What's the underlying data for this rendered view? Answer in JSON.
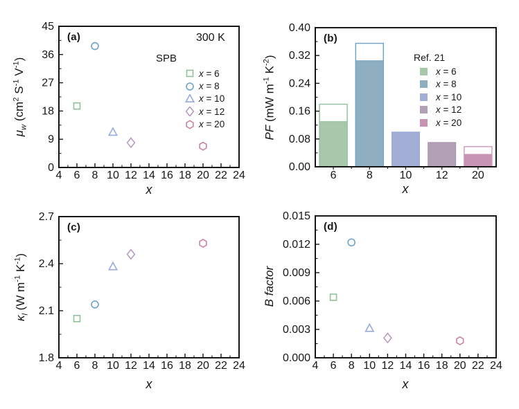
{
  "figure_title": "",
  "temperature_annotation": "300 K",
  "chart_data": [
    {
      "panel": "a",
      "label": "(a)",
      "type": "scatter",
      "annotation": "300 K",
      "xlabel": "*x*",
      "ylabel": "*μ_w_* (cm^2^ S^-1^ V^-1^)",
      "xlim": [
        4,
        24
      ],
      "ylim": [
        0,
        45
      ],
      "x_ticks": [
        4,
        6,
        8,
        10,
        12,
        14,
        16,
        18,
        20,
        22,
        24
      ],
      "x_tick_labels": [
        "4",
        "6",
        "8",
        "10",
        "12",
        "14",
        "16",
        "18",
        "20",
        "22",
        "24"
      ],
      "y_ticks": [
        0,
        9,
        18,
        27,
        36,
        45
      ],
      "y_tick_labels": [
        "0",
        "9",
        "18",
        "27",
        "36",
        "45"
      ],
      "grid": false,
      "legend": {
        "title": "SPB",
        "position": "upper right",
        "items": [
          {
            "label": "*x* = 6",
            "marker": "square",
            "color": "#90bf9b"
          },
          {
            "label": "*x* = 8",
            "marker": "circle",
            "color": "#6fa3c8"
          },
          {
            "label": "*x* = 10",
            "marker": "triangle",
            "color": "#97abda"
          },
          {
            "label": "*x* = 12",
            "marker": "diamond",
            "color": "#b79cc2"
          },
          {
            "label": "*x* = 20",
            "marker": "hexagon",
            "color": "#c684a4"
          }
        ]
      },
      "points": [
        {
          "x": 6,
          "y": 19.6,
          "marker": "square",
          "color": "#90bf9b"
        },
        {
          "x": 8,
          "y": 38.7,
          "marker": "circle",
          "color": "#6fa3c8"
        },
        {
          "x": 10,
          "y": 11.2,
          "marker": "triangle",
          "color": "#97abda"
        },
        {
          "x": 12,
          "y": 7.9,
          "marker": "diamond",
          "color": "#b79cc2"
        },
        {
          "x": 20,
          "y": 6.8,
          "marker": "hexagon",
          "color": "#c684a4"
        }
      ]
    },
    {
      "panel": "b",
      "label": "(b)",
      "type": "bar",
      "xlabel": "*x*",
      "ylabel": "*PF* (mW m^-1^ K^-2^)",
      "categories": [
        "6",
        "8",
        "10",
        "12",
        "20"
      ],
      "ylim": [
        0,
        0.4
      ],
      "y_ticks": [
        0.0,
        0.08,
        0.16,
        0.24,
        0.32,
        0.4
      ],
      "y_tick_labels": [
        "0.00",
        "0.08",
        "0.16",
        "0.24",
        "0.32",
        "0.40"
      ],
      "grid": false,
      "series": [
        {
          "name": "filled",
          "values": [
            0.13,
            0.305,
            0.1,
            0.07,
            0.036
          ]
        },
        {
          "name": "open-outline",
          "values": [
            0.18,
            0.355,
            null,
            null,
            0.058
          ]
        }
      ],
      "bar_colors": [
        "#a9c8ab",
        "#8fafc0",
        "#a2aed6",
        "#b1a0b6",
        "#c794b4"
      ],
      "bar_outline_colors": [
        "#90bf9b",
        "#6fa3c8",
        "#97abda",
        "#a793ad",
        "#cf9ab8"
      ],
      "legend": {
        "title": "Ref. 21",
        "position": "upper right",
        "items": [
          {
            "label": "*x* = 6",
            "color": "#a9c8ab"
          },
          {
            "label": "*x* = 8",
            "color": "#8fafc0"
          },
          {
            "label": "*x* = 10",
            "color": "#a2aed6"
          },
          {
            "label": "*x* = 12",
            "color": "#b1a0b6"
          },
          {
            "label": "*x* = 20",
            "color": "#c794b4"
          }
        ]
      }
    },
    {
      "panel": "c",
      "label": "(c)",
      "type": "scatter",
      "xlabel": "*x*",
      "ylabel": "*κ_l_* (W m^-1^ K^-1^)",
      "xlim": [
        4,
        24
      ],
      "ylim": [
        1.8,
        2.7
      ],
      "x_ticks": [
        4,
        6,
        8,
        10,
        12,
        14,
        16,
        18,
        20,
        22,
        24
      ],
      "x_tick_labels": [
        "4",
        "6",
        "8",
        "10",
        "12",
        "14",
        "16",
        "18",
        "20",
        "22",
        "24"
      ],
      "y_ticks": [
        1.8,
        2.1,
        2.4,
        2.7
      ],
      "y_tick_labels": [
        "1.8",
        "2.1",
        "2.4",
        "2.7"
      ],
      "grid": false,
      "points": [
        {
          "x": 6,
          "y": 2.05,
          "marker": "square",
          "color": "#90bf9b"
        },
        {
          "x": 8,
          "y": 2.14,
          "marker": "circle",
          "color": "#6fa3c8"
        },
        {
          "x": 10,
          "y": 2.38,
          "marker": "triangle",
          "color": "#97abda"
        },
        {
          "x": 12,
          "y": 2.46,
          "marker": "diamond",
          "color": "#b79cc2"
        },
        {
          "x": 20,
          "y": 2.53,
          "marker": "hexagon",
          "color": "#c684a4"
        }
      ]
    },
    {
      "panel": "d",
      "label": "(d)",
      "type": "scatter",
      "xlabel": "*x*",
      "ylabel": "*B factor*",
      "xlim": [
        4,
        24
      ],
      "ylim": [
        0,
        0.015
      ],
      "x_ticks": [
        4,
        6,
        8,
        10,
        12,
        14,
        16,
        18,
        20,
        22,
        24
      ],
      "x_tick_labels": [
        "4",
        "6",
        "8",
        "10",
        "12",
        "14",
        "16",
        "18",
        "20",
        "22",
        "24"
      ],
      "y_ticks": [
        0.0,
        0.003,
        0.006,
        0.009,
        0.012,
        0.015
      ],
      "y_tick_labels": [
        "0.000",
        "0.003",
        "0.006",
        "0.009",
        "0.012",
        "0.015"
      ],
      "grid": false,
      "points": [
        {
          "x": 6,
          "y": 0.0064,
          "marker": "square",
          "color": "#90bf9b"
        },
        {
          "x": 8,
          "y": 0.0122,
          "marker": "circle",
          "color": "#6fa3c8"
        },
        {
          "x": 10,
          "y": 0.0031,
          "marker": "triangle",
          "color": "#97abda"
        },
        {
          "x": 12,
          "y": 0.0021,
          "marker": "diamond",
          "color": "#b79cc2"
        },
        {
          "x": 20,
          "y": 0.0018,
          "marker": "hexagon",
          "color": "#c684a4"
        }
      ]
    }
  ]
}
